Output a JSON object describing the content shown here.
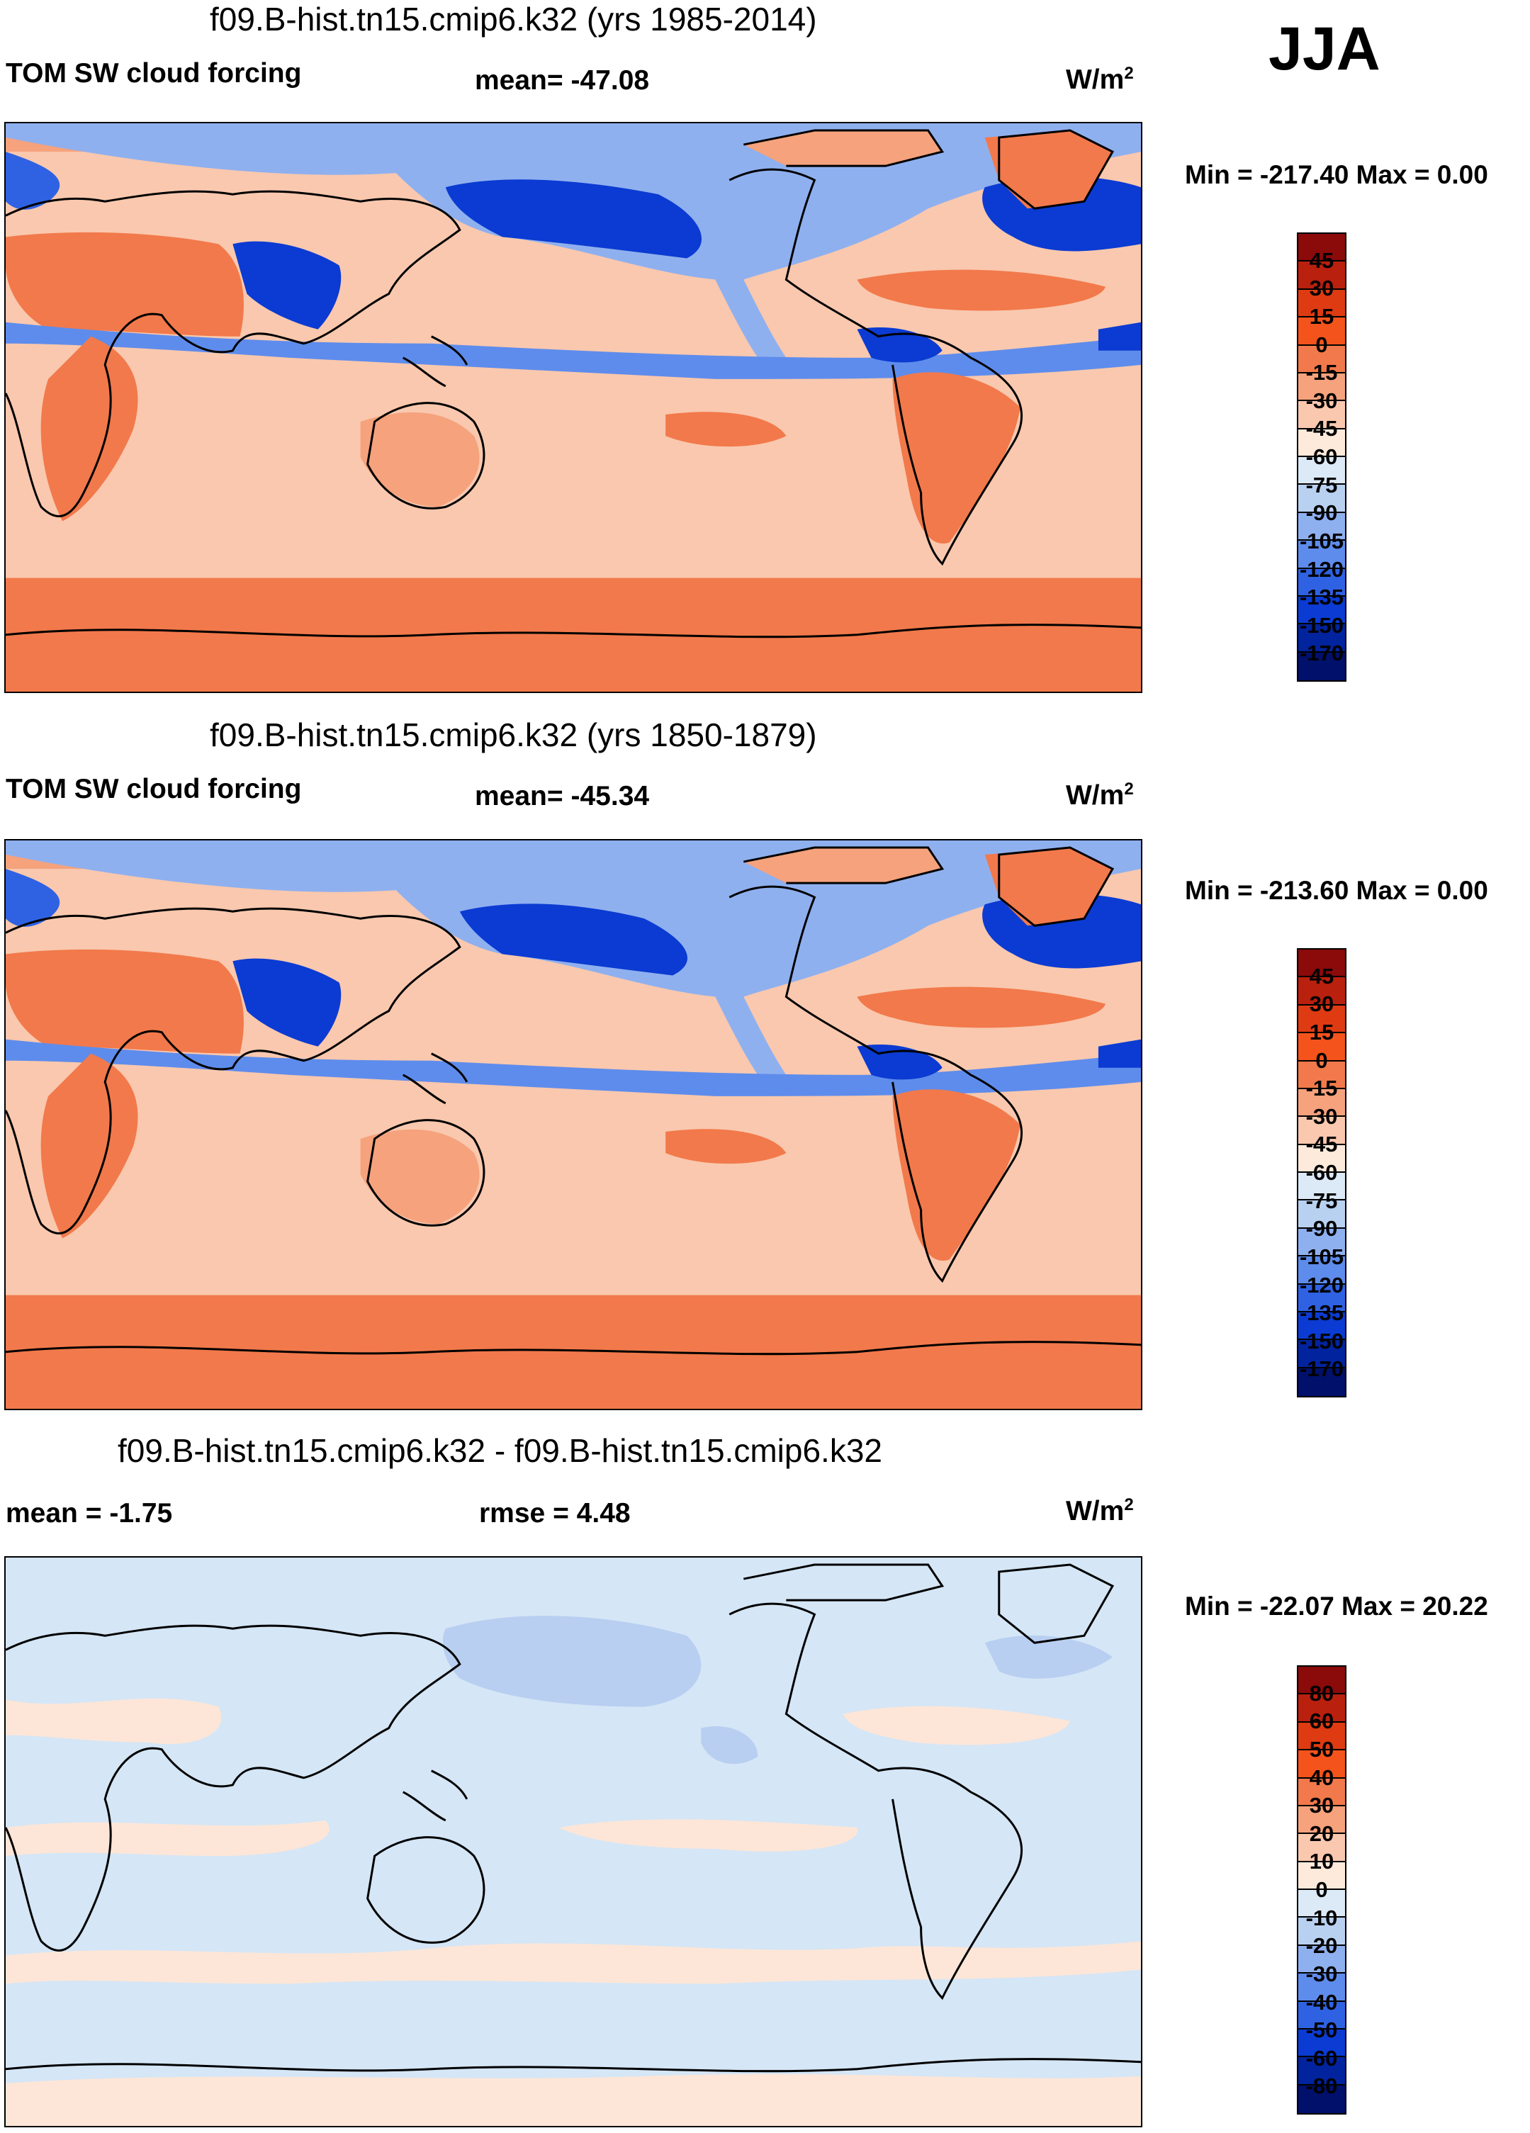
{
  "season": "JJA",
  "panels": [
    {
      "title": "f09.B-hist.tn15.cmip6.k32 (yrs 1985-2014)",
      "left_label": "TOM SW cloud forcing",
      "center_label": "mean= -47.08",
      "units": "W/m",
      "units_sup": "2",
      "minmax": "Min = -217.40 Max =   0.00",
      "levels": [
        "45",
        "30",
        "15",
        "0",
        "-15",
        "-30",
        "-45",
        "-60",
        "-75",
        "-90",
        "-105",
        "-120",
        "-135",
        "-150",
        "-170"
      ]
    },
    {
      "title": "f09.B-hist.tn15.cmip6.k32 (yrs 1850-1879)",
      "left_label": "TOM SW cloud forcing",
      "center_label": "mean= -45.34",
      "units": "W/m",
      "units_sup": "2",
      "minmax": "Min = -213.60 Max =   0.00",
      "levels": [
        "45",
        "30",
        "15",
        "0",
        "-15",
        "-30",
        "-45",
        "-60",
        "-75",
        "-90",
        "-105",
        "-120",
        "-135",
        "-150",
        "-170"
      ]
    },
    {
      "title": "f09.B-hist.tn15.cmip6.k32 - f09.B-hist.tn15.cmip6.k32",
      "left_label": "mean =  -1.75",
      "center_label": "rmse =   4.48",
      "units": "W/m",
      "units_sup": "2",
      "minmax": "Min = -22.07 Max =  20.22",
      "levels": [
        "80",
        "60",
        "50",
        "40",
        "30",
        "20",
        "10",
        "0",
        "-10",
        "-20",
        "-30",
        "-40",
        "-50",
        "-60",
        "-80"
      ]
    }
  ],
  "colors": {
    "colorbar": [
      "#8b0a0a",
      "#b9200e",
      "#de3b12",
      "#f5531c",
      "#f2794b",
      "#f5a27d",
      "#f9c8ae",
      "#fdeadb",
      "#dce9f6",
      "#b9d1f1",
      "#8fb0ef",
      "#5e8cec",
      "#2f62e3",
      "#0b3bd2",
      "#02239e",
      "#00106b"
    ],
    "diff_base": "#d5e6f6",
    "diff_warm": "#fde6d7",
    "diff_cool": "#b9cff1",
    "land_line": "#000000"
  },
  "chart_data": [
    {
      "type": "heatmap",
      "title": "f09.B-hist.tn15.cmip6.k32 (yrs 1985-2014)",
      "variable": "TOM SW cloud forcing",
      "units": "W/m2",
      "season": "JJA",
      "mean": -47.08,
      "min": -217.4,
      "max": 0.0,
      "contour_levels": [
        -170,
        -150,
        -135,
        -120,
        -105,
        -90,
        -75,
        -60,
        -45,
        -30,
        -15,
        0,
        15,
        30,
        45
      ]
    },
    {
      "type": "heatmap",
      "title": "f09.B-hist.tn15.cmip6.k32 (yrs 1850-1879)",
      "variable": "TOM SW cloud forcing",
      "units": "W/m2",
      "season": "JJA",
      "mean": -45.34,
      "min": -213.6,
      "max": 0.0,
      "contour_levels": [
        -170,
        -150,
        -135,
        -120,
        -105,
        -90,
        -75,
        -60,
        -45,
        -30,
        -15,
        0,
        15,
        30,
        45
      ]
    },
    {
      "type": "heatmap",
      "title": "f09.B-hist.tn15.cmip6.k32 - f09.B-hist.tn15.cmip6.k32",
      "units": "W/m2",
      "mean": -1.75,
      "rmse": 4.48,
      "min": -22.07,
      "max": 20.22,
      "contour_levels": [
        -80,
        -60,
        -50,
        -40,
        -30,
        -20,
        -10,
        0,
        10,
        20,
        30,
        40,
        50,
        60,
        80
      ]
    }
  ]
}
